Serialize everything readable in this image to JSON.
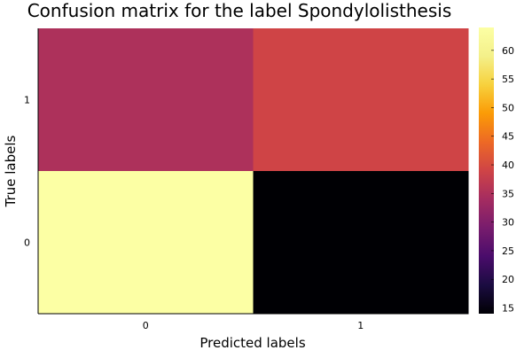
{
  "chart_data": {
    "type": "heatmap",
    "title": "Confusion matrix for the label Spondylolisthesis",
    "xlabel": "Predicted labels",
    "ylabel": "True labels",
    "x_categories": [
      "0",
      "1"
    ],
    "y_categories": [
      "0",
      "1"
    ],
    "cells": [
      {
        "true_label": "1",
        "predicted_label": "0",
        "value": 35
      },
      {
        "true_label": "1",
        "predicted_label": "1",
        "value": 39
      },
      {
        "true_label": "0",
        "predicted_label": "0",
        "value": 64
      },
      {
        "true_label": "0",
        "predicted_label": "1",
        "value": 14
      }
    ],
    "colorbar": {
      "colormap": "inferno",
      "range": [
        14,
        64
      ],
      "ticks": [
        "15",
        "20",
        "25",
        "30",
        "35",
        "40",
        "45",
        "50",
        "55",
        "60"
      ]
    },
    "grid": false,
    "legend": "none"
  }
}
